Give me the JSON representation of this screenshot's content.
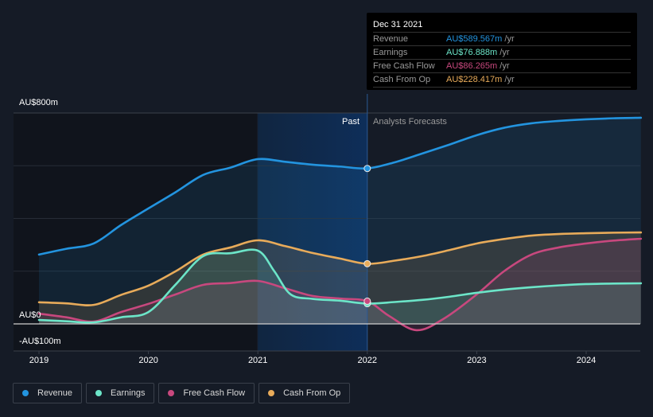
{
  "tooltip": {
    "date": "Dec 31 2021",
    "rows": [
      {
        "label": "Revenue",
        "value": "AU$589.567m",
        "unit": "/yr",
        "color": "#2394df"
      },
      {
        "label": "Earnings",
        "value": "AU$76.888m",
        "unit": "/yr",
        "color": "#6ce5c8"
      },
      {
        "label": "Free Cash Flow",
        "value": "AU$86.265m",
        "unit": "/yr",
        "color": "#c8487e"
      },
      {
        "label": "Cash From Op",
        "value": "AU$228.417m",
        "unit": "/yr",
        "color": "#e8ab5a"
      }
    ]
  },
  "legend": [
    {
      "label": "Revenue",
      "color": "#2394df"
    },
    {
      "label": "Earnings",
      "color": "#6ce5c8"
    },
    {
      "label": "Free Cash Flow",
      "color": "#c8487e"
    },
    {
      "label": "Cash From Op",
      "color": "#e8ab5a"
    }
  ],
  "chart_data": {
    "type": "line",
    "title": "",
    "xlabel": "",
    "ylabel": "",
    "y_tick_labels": [
      "AU$800m",
      "AU$0",
      "-AU$100m"
    ],
    "x_tick_labels": [
      "2019",
      "2020",
      "2021",
      "2022",
      "2023",
      "2024"
    ],
    "x_ticks": [
      2019,
      2020,
      2021,
      2022,
      2023,
      2024
    ],
    "xlim": [
      2018.8,
      2024.5
    ],
    "ylim": [
      -100,
      800
    ],
    "grid": true,
    "legend_position": "bottom-left",
    "past_label": "Past",
    "forecast_label": "Analysts Forecasts",
    "past_region": [
      2021.0,
      2022.0
    ],
    "divider_x": 2022.0,
    "series": [
      {
        "name": "Revenue",
        "color": "#2394df",
        "x": [
          2019.0,
          2019.25,
          2019.5,
          2019.75,
          2020.0,
          2020.25,
          2020.5,
          2020.75,
          2021.0,
          2021.25,
          2021.5,
          2021.75,
          2022.0,
          2022.25,
          2022.5,
          2022.75,
          2023.0,
          2023.25,
          2023.5,
          2023.75,
          2024.0,
          2024.25,
          2024.5
        ],
        "values": [
          263,
          285,
          305,
          375,
          438,
          500,
          565,
          593,
          625,
          615,
          604,
          597,
          590,
          613,
          646,
          680,
          716,
          744,
          761,
          770,
          776,
          780,
          782
        ]
      },
      {
        "name": "Earnings",
        "color": "#6ce5c8",
        "x": [
          2019.0,
          2019.25,
          2019.5,
          2019.75,
          2020.0,
          2020.25,
          2020.5,
          2020.75,
          2021.0,
          2021.15,
          2021.3,
          2021.5,
          2021.75,
          2022.0,
          2022.25,
          2022.5,
          2022.75,
          2023.0,
          2023.25,
          2023.5,
          2023.75,
          2024.0,
          2024.25,
          2024.5
        ],
        "values": [
          15,
          10,
          6,
          25,
          45,
          150,
          257,
          268,
          278,
          200,
          112,
          95,
          88,
          77,
          83,
          91,
          103,
          118,
          130,
          139,
          146,
          151,
          153,
          154
        ]
      },
      {
        "name": "Free Cash Flow",
        "color": "#c8487e",
        "x": [
          2019.0,
          2019.25,
          2019.5,
          2019.75,
          2020.0,
          2020.25,
          2020.5,
          2020.75,
          2021.0,
          2021.25,
          2021.5,
          2021.75,
          2022.0,
          2022.2,
          2022.45,
          2022.7,
          2023.0,
          2023.25,
          2023.5,
          2023.75,
          2024.0,
          2024.25,
          2024.5
        ],
        "values": [
          39,
          25,
          9,
          45,
          76,
          112,
          148,
          155,
          163,
          135,
          106,
          96,
          86,
          30,
          -24,
          20,
          112,
          200,
          263,
          290,
          305,
          316,
          323
        ]
      },
      {
        "name": "Cash From Op",
        "color": "#e8ab5a",
        "x": [
          2019.0,
          2019.25,
          2019.5,
          2019.75,
          2020.0,
          2020.25,
          2020.5,
          2020.75,
          2021.0,
          2021.25,
          2021.5,
          2021.75,
          2022.0,
          2022.25,
          2022.5,
          2022.75,
          2023.0,
          2023.25,
          2023.5,
          2023.75,
          2024.0,
          2024.25,
          2024.5
        ],
        "values": [
          82,
          78,
          72,
          110,
          145,
          200,
          263,
          290,
          317,
          295,
          269,
          248,
          228,
          240,
          257,
          280,
          305,
          322,
          335,
          341,
          344,
          346,
          347
        ]
      }
    ],
    "highlight_x": 2022.0,
    "highlight_values": {
      "Revenue": 589.567,
      "Earnings": 76.888,
      "Free Cash Flow": 86.265,
      "Cash From Op": 228.417
    }
  }
}
